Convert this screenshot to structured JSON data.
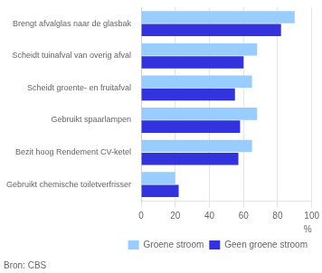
{
  "chart_data": {
    "type": "bar",
    "orientation": "horizontal",
    "categories": [
      "Brengt afvalglas naar de glasbak",
      "Scheidt tuinafval van overig afval",
      "Scheidt groente- en fruitafval",
      "Gebruikt spaarlampen",
      "Bezit hoog Rendement CV-ketel",
      "Gebruikt chemische toiletverfrisser"
    ],
    "series": [
      {
        "name": "Groene stroom",
        "color": "#99ccff",
        "values": [
          90,
          68,
          65,
          68,
          65,
          20
        ]
      },
      {
        "name": "Geen groene stroom",
        "color": "#3333dd",
        "values": [
          82,
          60,
          55,
          58,
          57,
          22
        ]
      }
    ],
    "xlabel": "%",
    "xlim": [
      0,
      100
    ],
    "xticks": [
      0,
      20,
      40,
      60,
      80,
      100
    ],
    "grid": true,
    "legend": "bottom",
    "annotations": [
      "Bron: CBS"
    ]
  }
}
